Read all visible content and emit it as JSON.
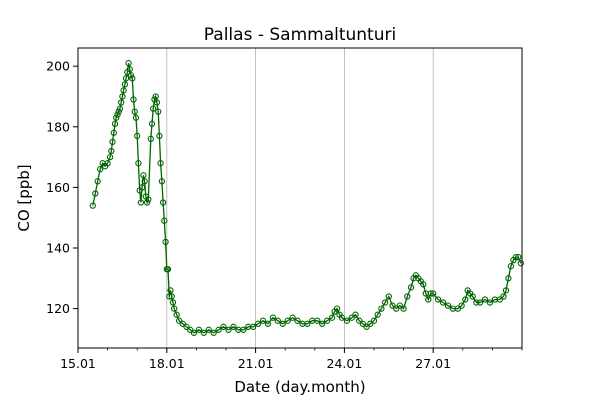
{
  "chart_data": {
    "type": "line",
    "title": "Pallas - Sammaltunturi",
    "xlabel": "Date (day.month)",
    "ylabel": "CO [ppb]",
    "xlim": [
      "2024-01-15",
      "2024-01-30"
    ],
    "ylim": [
      107,
      206
    ],
    "x_ticks": [
      {
        "date": "2024-01-15",
        "label": "15.01"
      },
      {
        "date": "2024-01-18",
        "label": "18.01"
      },
      {
        "date": "2024-01-21",
        "label": "21.01"
      },
      {
        "date": "2024-01-24",
        "label": "24.01"
      },
      {
        "date": "2024-01-27",
        "label": "27.01"
      }
    ],
    "y_ticks": [
      120,
      140,
      160,
      180,
      200
    ],
    "grid": "vertical lines at major x ticks",
    "series_color": "#006400",
    "marker": "open circle",
    "series": [
      {
        "points": [
          [
            "2024-01-15 12:00",
            154
          ],
          [
            "2024-01-15 14:00",
            158
          ],
          [
            "2024-01-15 16:00",
            162
          ],
          [
            "2024-01-15 18:00",
            166
          ],
          [
            "2024-01-15 20:00",
            168
          ],
          [
            "2024-01-15 22:00",
            167
          ],
          [
            "2024-01-16 00:00",
            168
          ],
          [
            "2024-01-16 02:00",
            170
          ],
          [
            "2024-01-16 03:00",
            172
          ],
          [
            "2024-01-16 04:00",
            175
          ],
          [
            "2024-01-16 05:00",
            178
          ],
          [
            "2024-01-16 06:00",
            181
          ],
          [
            "2024-01-16 07:00",
            183
          ],
          [
            "2024-01-16 08:00",
            184
          ],
          [
            "2024-01-16 09:00",
            185
          ],
          [
            "2024-01-16 10:00",
            186
          ],
          [
            "2024-01-16 11:00",
            188
          ],
          [
            "2024-01-16 12:00",
            190
          ],
          [
            "2024-01-16 13:00",
            192
          ],
          [
            "2024-01-16 14:00",
            194
          ],
          [
            "2024-01-16 15:00",
            196
          ],
          [
            "2024-01-16 16:00",
            198
          ],
          [
            "2024-01-16 17:00",
            201
          ],
          [
            "2024-01-16 18:00",
            199
          ],
          [
            "2024-01-16 19:00",
            197
          ],
          [
            "2024-01-16 20:00",
            196
          ],
          [
            "2024-01-16 21:00",
            189
          ],
          [
            "2024-01-16 22:00",
            185
          ],
          [
            "2024-01-16 23:00",
            183
          ],
          [
            "2024-01-17 00:00",
            177
          ],
          [
            "2024-01-17 01:00",
            168
          ],
          [
            "2024-01-17 02:00",
            159
          ],
          [
            "2024-01-17 03:00",
            155
          ],
          [
            "2024-01-17 04:00",
            160
          ],
          [
            "2024-01-17 05:00",
            164
          ],
          [
            "2024-01-17 06:00",
            162
          ],
          [
            "2024-01-17 07:00",
            157
          ],
          [
            "2024-01-17 08:00",
            155
          ],
          [
            "2024-01-17 09:00",
            156
          ],
          [
            "2024-01-17 11:00",
            176
          ],
          [
            "2024-01-17 12:00",
            181
          ],
          [
            "2024-01-17 13:00",
            186
          ],
          [
            "2024-01-17 14:00",
            189
          ],
          [
            "2024-01-17 15:00",
            190
          ],
          [
            "2024-01-17 16:00",
            188
          ],
          [
            "2024-01-17 17:00",
            185
          ],
          [
            "2024-01-17 18:00",
            177
          ],
          [
            "2024-01-17 19:00",
            168
          ],
          [
            "2024-01-17 20:00",
            162
          ],
          [
            "2024-01-17 21:00",
            155
          ],
          [
            "2024-01-17 22:00",
            149
          ],
          [
            "2024-01-17 23:00",
            142
          ],
          [
            "2024-01-18 00:00",
            133
          ],
          [
            "2024-01-18 01:00",
            133
          ],
          [
            "2024-01-18 02:00",
            124
          ],
          [
            "2024-01-18 03:00",
            126
          ],
          [
            "2024-01-18 04:00",
            124
          ],
          [
            "2024-01-18 05:00",
            122
          ],
          [
            "2024-01-18 06:00",
            120
          ],
          [
            "2024-01-18 08:00",
            118
          ],
          [
            "2024-01-18 10:00",
            116
          ],
          [
            "2024-01-18 13:00",
            115
          ],
          [
            "2024-01-18 16:00",
            114
          ],
          [
            "2024-01-18 19:00",
            113
          ],
          [
            "2024-01-18 22:00",
            112
          ],
          [
            "2024-01-19 02:00",
            113
          ],
          [
            "2024-01-19 06:00",
            112
          ],
          [
            "2024-01-19 10:00",
            113
          ],
          [
            "2024-01-19 14:00",
            112
          ],
          [
            "2024-01-19 18:00",
            113
          ],
          [
            "2024-01-19 22:00",
            114
          ],
          [
            "2024-01-20 02:00",
            113
          ],
          [
            "2024-01-20 06:00",
            114
          ],
          [
            "2024-01-20 10:00",
            113
          ],
          [
            "2024-01-20 14:00",
            113
          ],
          [
            "2024-01-20 18:00",
            114
          ],
          [
            "2024-01-20 22:00",
            114
          ],
          [
            "2024-01-21 02:00",
            115
          ],
          [
            "2024-01-21 06:00",
            116
          ],
          [
            "2024-01-21 10:00",
            115
          ],
          [
            "2024-01-21 14:00",
            117
          ],
          [
            "2024-01-21 18:00",
            116
          ],
          [
            "2024-01-21 22:00",
            115
          ],
          [
            "2024-01-22 02:00",
            116
          ],
          [
            "2024-01-22 06:00",
            117
          ],
          [
            "2024-01-22 10:00",
            116
          ],
          [
            "2024-01-22 14:00",
            115
          ],
          [
            "2024-01-22 18:00",
            115
          ],
          [
            "2024-01-22 22:00",
            116
          ],
          [
            "2024-01-23 02:00",
            116
          ],
          [
            "2024-01-23 06:00",
            115
          ],
          [
            "2024-01-23 10:00",
            116
          ],
          [
            "2024-01-23 14:00",
            117
          ],
          [
            "2024-01-23 16:00",
            119
          ],
          [
            "2024-01-23 18:00",
            120
          ],
          [
            "2024-01-23 20:00",
            118
          ],
          [
            "2024-01-23 22:00",
            117
          ],
          [
            "2024-01-24 02:00",
            116
          ],
          [
            "2024-01-24 06:00",
            117
          ],
          [
            "2024-01-24 09:00",
            118
          ],
          [
            "2024-01-24 12:00",
            116
          ],
          [
            "2024-01-24 15:00",
            115
          ],
          [
            "2024-01-24 18:00",
            114
          ],
          [
            "2024-01-24 21:00",
            115
          ],
          [
            "2024-01-25 00:00",
            116
          ],
          [
            "2024-01-25 03:00",
            118
          ],
          [
            "2024-01-25 06:00",
            120
          ],
          [
            "2024-01-25 09:00",
            122
          ],
          [
            "2024-01-25 12:00",
            124
          ],
          [
            "2024-01-25 15:00",
            121
          ],
          [
            "2024-01-25 18:00",
            120
          ],
          [
            "2024-01-25 21:00",
            121
          ],
          [
            "2024-01-26 00:00",
            120
          ],
          [
            "2024-01-26 03:00",
            124
          ],
          [
            "2024-01-26 06:00",
            127
          ],
          [
            "2024-01-26 08:00",
            130
          ],
          [
            "2024-01-26 10:00",
            131
          ],
          [
            "2024-01-26 12:00",
            130
          ],
          [
            "2024-01-26 14:00",
            129
          ],
          [
            "2024-01-26 16:00",
            128
          ],
          [
            "2024-01-26 18:00",
            125
          ],
          [
            "2024-01-26 20:00",
            123
          ],
          [
            "2024-01-26 22:00",
            125
          ],
          [
            "2024-01-27 00:00",
            125
          ],
          [
            "2024-01-27 04:00",
            123
          ],
          [
            "2024-01-27 08:00",
            122
          ],
          [
            "2024-01-27 12:00",
            121
          ],
          [
            "2024-01-27 16:00",
            120
          ],
          [
            "2024-01-27 20:00",
            120
          ],
          [
            "2024-01-27 23:00",
            121
          ],
          [
            "2024-01-28 02:00",
            123
          ],
          [
            "2024-01-28 04:00",
            126
          ],
          [
            "2024-01-28 06:00",
            125
          ],
          [
            "2024-01-28 08:00",
            124
          ],
          [
            "2024-01-28 11:00",
            122
          ],
          [
            "2024-01-28 14:00",
            122
          ],
          [
            "2024-01-28 18:00",
            123
          ],
          [
            "2024-01-28 22:00",
            122
          ],
          [
            "2024-01-29 02:00",
            123
          ],
          [
            "2024-01-29 06:00",
            123
          ],
          [
            "2024-01-29 09:00",
            124
          ],
          [
            "2024-01-29 11:00",
            126
          ],
          [
            "2024-01-29 13:00",
            130
          ],
          [
            "2024-01-29 15:00",
            134
          ],
          [
            "2024-01-29 17:00",
            136
          ],
          [
            "2024-01-29 19:00",
            137
          ],
          [
            "2024-01-29 21:00",
            137
          ],
          [
            "2024-01-29 23:00",
            135
          ]
        ]
      }
    ]
  }
}
